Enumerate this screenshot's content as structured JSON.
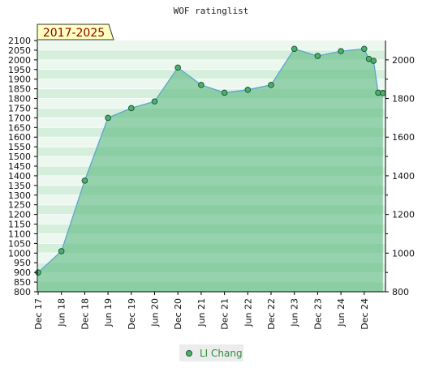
{
  "chart_data": {
    "type": "area",
    "title": "WOF ratinglist",
    "badge": "2017-2025",
    "x_tick_labels": [
      "Dec 17",
      "Jun 18",
      "Dec 18",
      "Jun 19",
      "Dec 19",
      "Jun 20",
      "Dec 20",
      "Jun 21",
      "Dec 21",
      "Jun 22",
      "Dec 22",
      "Jun 23",
      "Dec 23",
      "Jun 24",
      "Dec 24"
    ],
    "x_tick_index": [
      0,
      1,
      2,
      3,
      4,
      5,
      6,
      7,
      8,
      9,
      10,
      11,
      12,
      13,
      14
    ],
    "left_axis": {
      "min": 800,
      "max": 2100,
      "step": 50,
      "ticks": [
        "800",
        "850",
        "900",
        "950",
        "1000",
        "1050",
        "1100",
        "1150",
        "1200",
        "1250",
        "1300",
        "1350",
        "1400",
        "1450",
        "1500",
        "1550",
        "1600",
        "1650",
        "1700",
        "1750",
        "1800",
        "1850",
        "1900",
        "1950",
        "2000",
        "2050",
        "2100"
      ]
    },
    "right_axis": {
      "ticks": [
        "800",
        "1000",
        "1200",
        "1400",
        "1600",
        "1800",
        "2000"
      ]
    },
    "series": [
      {
        "name": "LI Chang",
        "x": [
          0,
          1,
          2,
          3,
          4,
          5,
          6,
          7,
          8,
          9,
          10,
          11,
          12,
          13,
          14,
          14.2,
          14.4,
          14.6,
          14.8
        ],
        "values": [
          900,
          1010,
          1375,
          1700,
          1750,
          1785,
          1960,
          1870,
          1830,
          1845,
          1870,
          2057,
          2020,
          2045,
          2057,
          2005,
          1995,
          1830,
          1828
        ]
      }
    ],
    "colors": {
      "area_light": "#c6e8d0",
      "area_dark": "#7fc89a",
      "line": "#5aa6cf",
      "marker": "#4caf6e",
      "badge_bg": "#ffffc0"
    },
    "grid": true,
    "legend_position": "bottom-center"
  }
}
